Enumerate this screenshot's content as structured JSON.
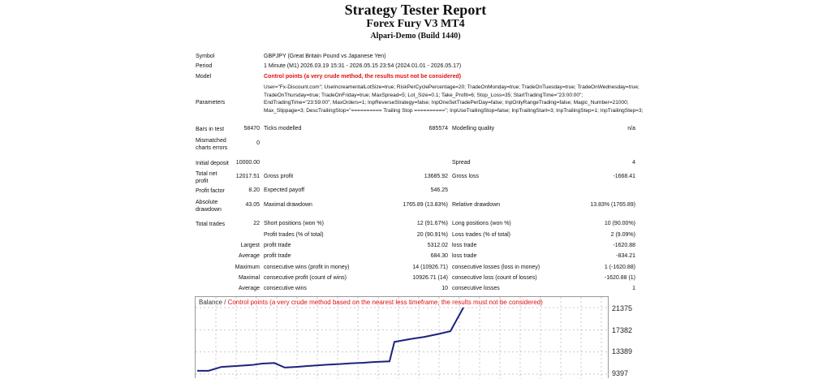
{
  "report": {
    "title": "Strategy Tester Report",
    "subtitle": "Forex Fury V3 MT4",
    "server": "Alpari-Demo (Build 1440)"
  },
  "info": {
    "symbol_label": "Symbol",
    "symbol_value": "GBPJPY (Great Britain Pound vs Japanese Yen)",
    "period_label": "Period",
    "period_value": "1 Minute (M1) 2026.03.19 15:31 - 2026.05.15 23:54 (2024.01.01 - 2026.05.17)",
    "model_label": "Model",
    "model_value": "Control points (a very crude method, the results must not be considered)",
    "parameters_label": "Parameters",
    "parameters_value": "User=\"Fx-Discount.com\"; UseIncreamentalLotSize=true; RiskPerCyclePercentage=20; TradeOnMonday=true; TradeOnTuesday=true; TradeOnWednesday=true; TradeOnThursday=true; TradeOnFriday=true; MaxSpread=5; Lot_Size=0.1; Take_Profit=6; Stop_Loss=35; StartTradingTime=\"23:00:00\"; EndTradingTime=\"23:59:00\"; MaxOrders=1; InpReverseStrategy=false; InpOneSetTradePerDay=false; InpOnlyRangeTrading=false; Magic_Number=21000; Max_Slippage=3; DescTrailingStop=\"========== Trailing Stop ==========\"; InpUseTrailingStop=false; InpTrailingStart=3; InpTrailingStep=1; InpTrailingStep=3;"
  },
  "stats": {
    "bars_label": "Bars in test",
    "bars_value": "58470",
    "ticks_label": "Ticks modelled",
    "ticks_value": "685574",
    "quality_label": "Modelling quality",
    "quality_value": "n/a",
    "mismatch_label_1": "Mismatched",
    "mismatch_label_2": "charts errors",
    "mismatch_value": "0",
    "deposit_label": "Initial deposit",
    "deposit_value": "10000.00",
    "spread_label": "Spread",
    "spread_value": "4",
    "net_label_1": "Total net",
    "net_label_2": "profit",
    "net_value": "12017.51",
    "gross_profit_label": "Gross profit",
    "gross_profit_value": "13685.92",
    "gross_loss_label": "Gross loss",
    "gross_loss_value": "-1668.41",
    "pf_label": "Profit factor",
    "pf_value": "8.20",
    "payoff_label": "Expected payoff",
    "payoff_value": "546.25",
    "abs_dd_label_1": "Absolute",
    "abs_dd_label_2": "drawdown",
    "abs_dd_value": "43.05",
    "max_dd_label": "Maximal drawdown",
    "max_dd_value": "1765.89 (13.83%)",
    "rel_dd_label": "Relative drawdown",
    "rel_dd_value": "13.83% (1765.89)",
    "trades_label": "Total trades",
    "trades_value": "22",
    "short_label": "Short positions (won %)",
    "short_value": "12 (91.67%)",
    "long_label": "Long positions (won %)",
    "long_value": "10 (90.00%)",
    "ptrades_label": "Profit trades (% of total)",
    "ptrades_value": "20 (90.91%)",
    "ltrades_label": "Loss trades (% of total)",
    "ltrades_value": "2 (9.09%)",
    "largest_label": "Largest",
    "largest_pt_label": "profit trade",
    "largest_pt_value": "5312.02",
    "largest_lt_label": "loss trade",
    "largest_lt_value": "-1620.88",
    "average_label": "Average",
    "average_pt_label": "profit trade",
    "average_pt_value": "684.30",
    "average_lt_label": "loss trade",
    "average_lt_value": "-834.21",
    "maximum_label": "Maximum",
    "max_cw_label": "consecutive wins (profit in money)",
    "max_cw_value": "14 (10926.71)",
    "max_cl_label": "consecutive losses (loss in money)",
    "max_cl_value": "1 (-1620.88)",
    "maximal_label": "Maximal",
    "maximal_cp_label": "consecutive profit (count of wins)",
    "maximal_cp_value": "10926.71 (14)",
    "maximal_cl_label": "consecutive loss (count of losses)",
    "maximal_cl_value": "-1620.88 (1)",
    "avg2_label": "Average",
    "avg_cw_label": "consecutive wins",
    "avg_cw_value": "10",
    "avg_cl_label": "consecutive losses",
    "avg_cl_value": "1"
  },
  "chart": {
    "legend_balance": "Balance / ",
    "legend_warning": "Control points (a very crude method based on the nearest less timeframe, the results must not be considered)",
    "y_ticks": [
      "21375",
      "17382",
      "13389",
      "9397"
    ],
    "line_color": "#1a237e"
  },
  "chart_data": {
    "type": "line",
    "title": "",
    "series": [
      {
        "name": "Balance",
        "values": [
          10000,
          10000,
          10700,
          10850,
          11050,
          11300,
          11400,
          10580,
          10700,
          10900,
          11100,
          11200,
          11350,
          11450,
          11550,
          11600,
          11700,
          15200,
          15700,
          16100,
          16650,
          17120,
          21375
        ]
      }
    ],
    "y_ticks": [
      21375,
      17382,
      13389,
      9397
    ],
    "ylim": [
      9397,
      21375
    ],
    "grid": true
  }
}
